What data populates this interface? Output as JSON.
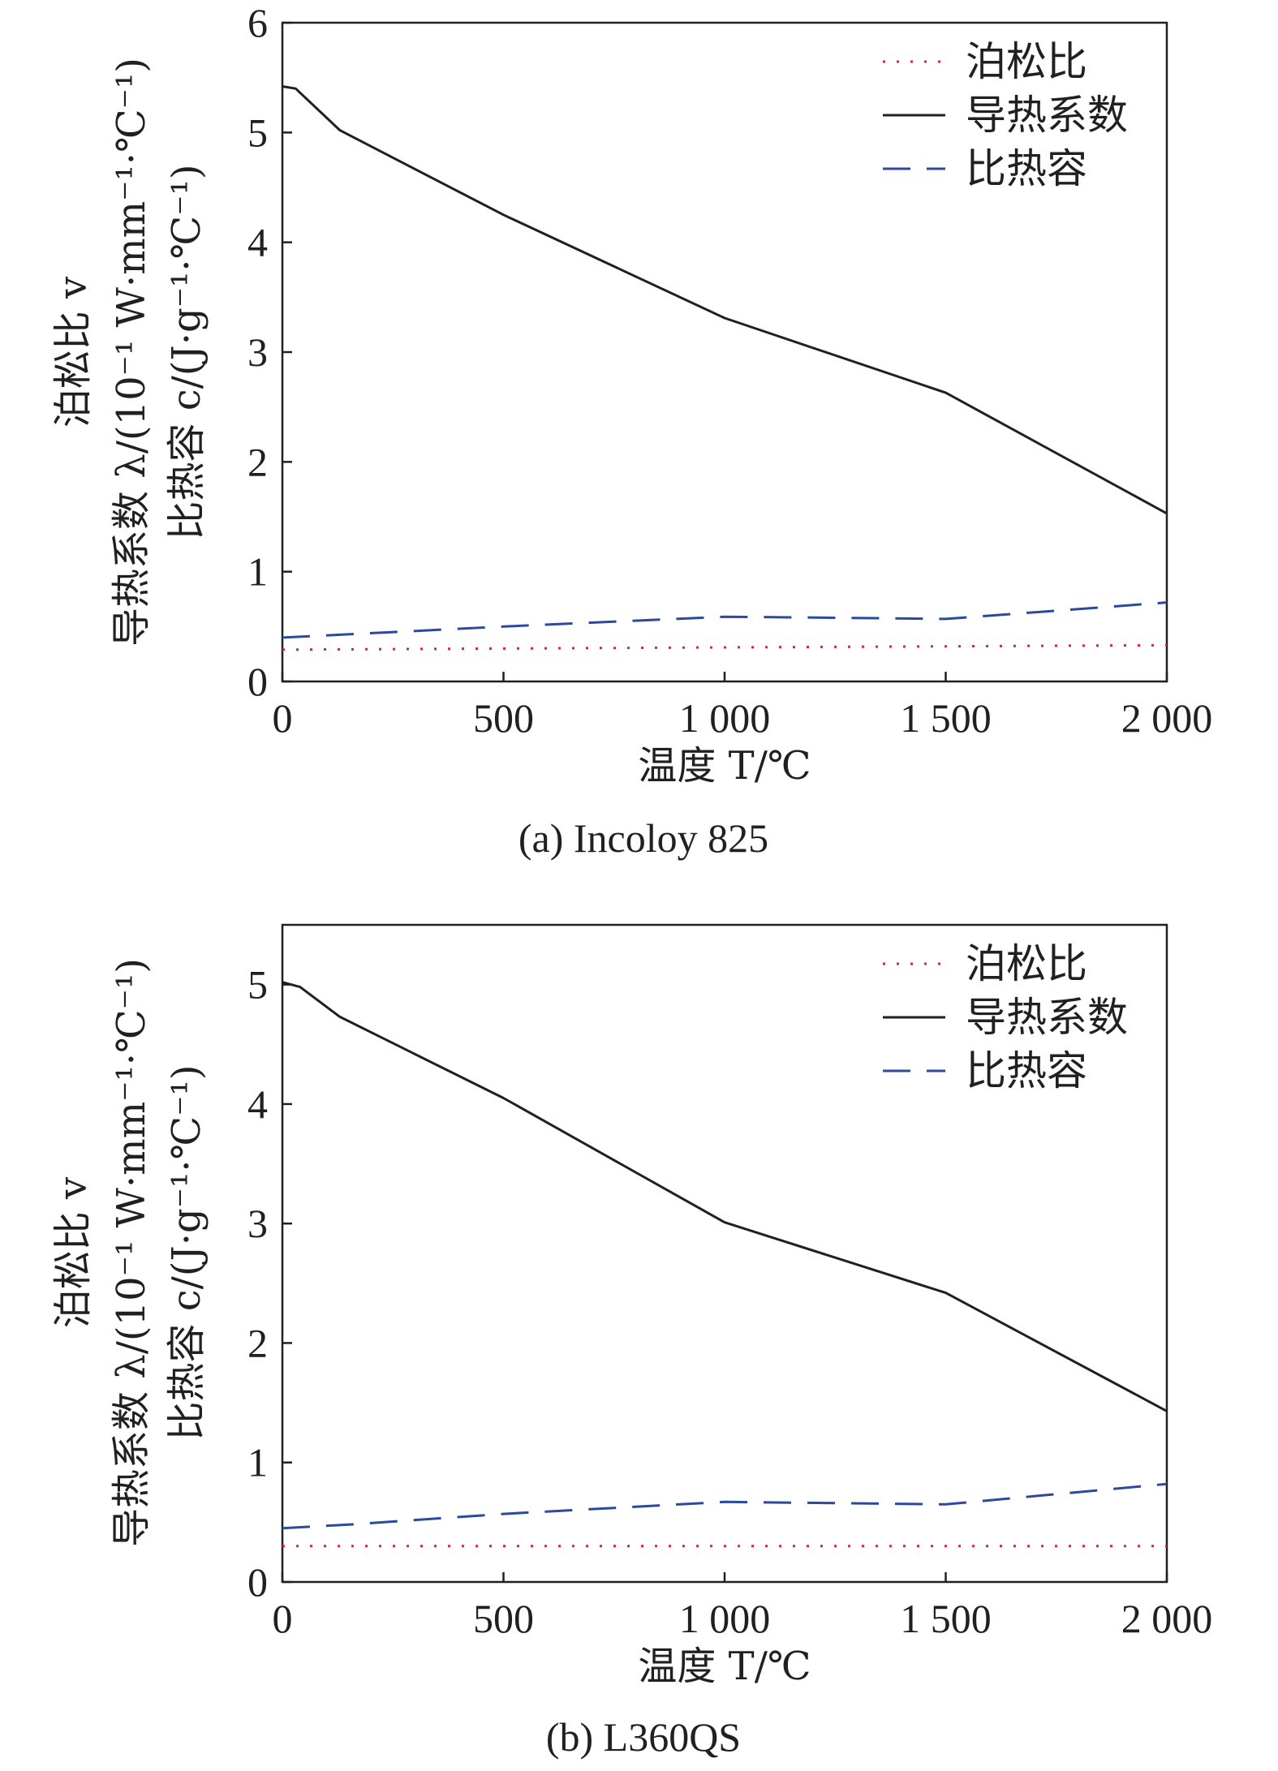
{
  "figure": {
    "x_label": "温度 T/℃",
    "y_label_line1": "泊松比 v",
    "y_label_line2": "导热系数 λ/(10⁻¹ W·mm⁻¹·℃⁻¹)",
    "y_label_line3": "比热容 c/(J·g⁻¹·℃⁻¹)",
    "legend": [
      "泊松比",
      "导热系数",
      "比热容"
    ],
    "series_colors": {
      "泊松比": "#d9282f",
      "导热系数": "#231f20",
      "比热容": "#2b4a9e"
    }
  },
  "chart_data": [
    {
      "type": "line",
      "caption": "(a) Incoloy 825",
      "xlim": [
        0,
        2000
      ],
      "ylim": [
        0,
        6
      ],
      "x_ticks": [
        0,
        500,
        1000,
        1500,
        2000
      ],
      "x_tick_labels": [
        "0",
        "500",
        "1 000",
        "1 500",
        "2 000"
      ],
      "y_ticks": [
        0,
        1,
        2,
        3,
        4,
        5,
        6
      ],
      "y_tick_labels": [
        "0",
        "1",
        "2",
        "3",
        "4",
        "5",
        "6"
      ],
      "legend_position": "top-right",
      "series": [
        {
          "name": "泊松比",
          "style": "dotted",
          "x": [
            0,
            500,
            1000,
            1500,
            2000
          ],
          "y": [
            0.29,
            0.3,
            0.31,
            0.32,
            0.33
          ]
        },
        {
          "name": "导热系数",
          "style": "solid",
          "x": [
            0,
            30,
            130,
            500,
            1000,
            1500,
            2000
          ],
          "y": [
            5.42,
            5.4,
            5.02,
            4.25,
            3.31,
            2.63,
            1.53
          ]
        },
        {
          "name": "比热容",
          "style": "dashed",
          "x": [
            0,
            500,
            1000,
            1250,
            1500,
            2000
          ],
          "y": [
            0.4,
            0.5,
            0.59,
            0.58,
            0.57,
            0.72
          ]
        }
      ]
    },
    {
      "type": "line",
      "caption": "(b) L360QS",
      "xlim": [
        0,
        2000
      ],
      "ylim": [
        0,
        5.5
      ],
      "x_ticks": [
        0,
        500,
        1000,
        1500,
        2000
      ],
      "x_tick_labels": [
        "0",
        "500",
        "1 000",
        "1 500",
        "2 000"
      ],
      "y_ticks": [
        0,
        1,
        2,
        3,
        4,
        5
      ],
      "y_tick_labels": [
        "0",
        "1",
        "2",
        "3",
        "4",
        "5"
      ],
      "legend_position": "top-right",
      "series": [
        {
          "name": "泊松比",
          "style": "dotted",
          "x": [
            0,
            500,
            1000,
            1500,
            2000
          ],
          "y": [
            0.3,
            0.3,
            0.3,
            0.3,
            0.3
          ]
        },
        {
          "name": "导热系数",
          "style": "solid",
          "x": [
            0,
            40,
            130,
            500,
            1000,
            1500,
            2000
          ],
          "y": [
            5.02,
            4.98,
            4.73,
            4.05,
            3.01,
            2.42,
            1.43
          ]
        },
        {
          "name": "比热容",
          "style": "dashed",
          "x": [
            0,
            150,
            500,
            1000,
            1250,
            1500,
            2000
          ],
          "y": [
            0.45,
            0.48,
            0.57,
            0.67,
            0.66,
            0.65,
            0.82
          ]
        }
      ]
    }
  ]
}
